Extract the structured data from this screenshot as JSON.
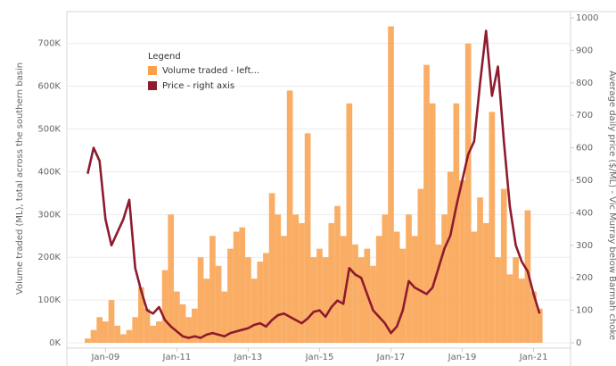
{
  "chart_data": {
    "type": "combo",
    "y_label": "Volume traded (ML), total across the southern basin",
    "y2_label": "Average daily price ($/ML) - Vic Murray below Barmah choke",
    "legend_title": "Legend",
    "categories": [
      null,
      null,
      null,
      "Jan-09",
      null,
      null,
      null,
      null,
      null,
      null,
      null,
      null,
      null,
      null,
      null,
      "Jan-11",
      null,
      null,
      null,
      null,
      null,
      null,
      null,
      null,
      null,
      null,
      null,
      "Jan-13",
      null,
      null,
      null,
      null,
      null,
      null,
      null,
      null,
      null,
      null,
      null,
      "Jan-15",
      null,
      null,
      null,
      null,
      null,
      null,
      null,
      null,
      null,
      null,
      null,
      "Jan-17",
      null,
      null,
      null,
      null,
      null,
      null,
      null,
      null,
      null,
      null,
      null,
      "Jan-19",
      null,
      null,
      null,
      null,
      null,
      null,
      null,
      null,
      null,
      null,
      null,
      "Jan-21",
      null
    ],
    "series": [
      {
        "name": "Volume traded - left...",
        "type": "bar",
        "color": "#f9a04a",
        "values": [
          10000,
          30000,
          60000,
          50000,
          100000,
          40000,
          20000,
          30000,
          60000,
          130000,
          80000,
          40000,
          50000,
          170000,
          300000,
          120000,
          90000,
          60000,
          80000,
          200000,
          150000,
          250000,
          180000,
          120000,
          220000,
          260000,
          270000,
          200000,
          150000,
          190000,
          210000,
          350000,
          300000,
          250000,
          590000,
          300000,
          280000,
          490000,
          200000,
          220000,
          200000,
          280000,
          320000,
          250000,
          560000,
          230000,
          200000,
          220000,
          180000,
          250000,
          300000,
          740000,
          260000,
          220000,
          300000,
          250000,
          360000,
          650000,
          560000,
          230000,
          300000,
          400000,
          560000,
          380000,
          700000,
          260000,
          340000,
          280000,
          540000,
          200000,
          360000,
          160000,
          200000,
          150000,
          310000,
          120000,
          80000
        ]
      },
      {
        "name": "Price - right axis",
        "type": "line",
        "axis": "y2",
        "color": "#8e1b2e",
        "values": [
          520,
          600,
          560,
          380,
          300,
          340,
          380,
          440,
          230,
          160,
          100,
          90,
          110,
          70,
          50,
          35,
          20,
          15,
          20,
          15,
          25,
          30,
          25,
          20,
          30,
          35,
          40,
          45,
          55,
          60,
          50,
          70,
          85,
          90,
          80,
          70,
          60,
          75,
          95,
          100,
          80,
          110,
          130,
          120,
          230,
          210,
          200,
          150,
          100,
          80,
          60,
          30,
          50,
          100,
          190,
          170,
          160,
          150,
          170,
          230,
          290,
          330,
          420,
          500,
          580,
          620,
          800,
          960,
          760,
          850,
          620,
          420,
          300,
          250,
          220,
          150,
          90
        ]
      }
    ],
    "ylim": [
      0,
      760000
    ],
    "yticks": [
      {
        "value": 0,
        "label": "0K"
      },
      {
        "value": 100000,
        "label": "100K"
      },
      {
        "value": 200000,
        "label": "200K"
      },
      {
        "value": 300000,
        "label": "300K"
      },
      {
        "value": 400000,
        "label": "400K"
      },
      {
        "value": 500000,
        "label": "500K"
      },
      {
        "value": 600000,
        "label": "600K"
      },
      {
        "value": 700000,
        "label": "700K"
      }
    ],
    "y2lim": [
      0,
      1000
    ],
    "y2ticks": [
      0,
      100,
      200,
      300,
      400,
      500,
      600,
      700,
      800,
      900,
      1000
    ],
    "grid": true
  }
}
